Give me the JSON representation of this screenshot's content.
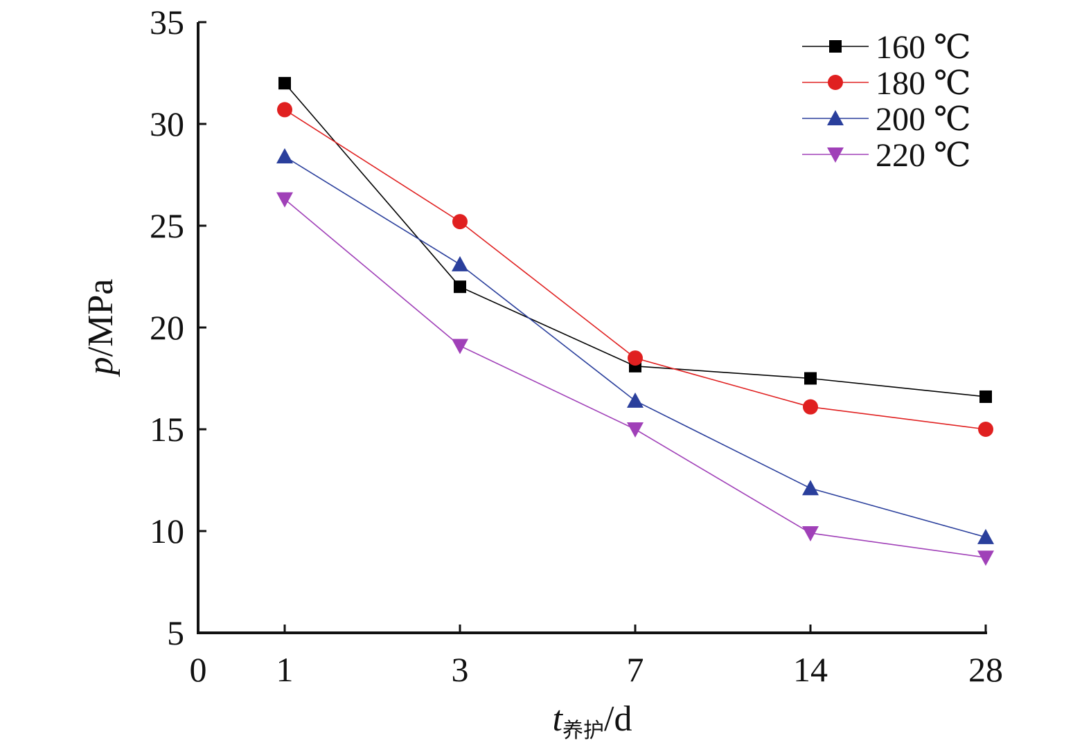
{
  "chart_data": {
    "type": "line",
    "categories": [
      "1",
      "3",
      "7",
      "14",
      "28"
    ],
    "x_tick_labels": [
      "0",
      "1",
      "3",
      "7",
      "14",
      "28"
    ],
    "y_ticks": [
      5,
      10,
      15,
      20,
      25,
      30,
      35
    ],
    "ylim": [
      5,
      35
    ],
    "xlabel": {
      "var": "t",
      "sub": "养护",
      "unit": "/d"
    },
    "ylabel": {
      "var": "p",
      "unit": "/MPa"
    },
    "grid": false,
    "legend_position": "top-right",
    "series": [
      {
        "name": "160 ℃",
        "color": "#000000",
        "marker": "square",
        "values": [
          32.0,
          22.0,
          18.1,
          17.5,
          16.6
        ]
      },
      {
        "name": "180 ℃",
        "color": "#e02020",
        "marker": "circle",
        "values": [
          30.7,
          25.2,
          18.5,
          16.1,
          15.0
        ]
      },
      {
        "name": "200 ℃",
        "color": "#2a3f9c",
        "marker": "triangle-up",
        "values": [
          28.4,
          23.1,
          16.4,
          12.1,
          9.7
        ]
      },
      {
        "name": "220 ℃",
        "color": "#a040b8",
        "marker": "triangle-down",
        "values": [
          26.3,
          19.1,
          15.0,
          9.9,
          8.7
        ]
      }
    ]
  }
}
